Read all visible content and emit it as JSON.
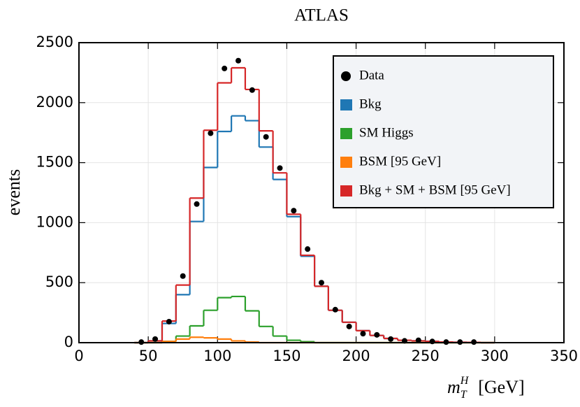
{
  "chart_data": {
    "type": "histogram",
    "title": "ATLAS",
    "y_label": "events",
    "x_label": {
      "symbol": "m",
      "sub": "T",
      "sup": "H",
      "unit": "[GeV]"
    },
    "bins": [
      40,
      50,
      60,
      70,
      80,
      90,
      100,
      110,
      120,
      130,
      140,
      150,
      160,
      170,
      180,
      190,
      200,
      210,
      220,
      230,
      240,
      250,
      260,
      270,
      280,
      290,
      300
    ],
    "points": {
      "name": "Data",
      "color": "#000000",
      "x": [
        45,
        55,
        65,
        75,
        85,
        95,
        105,
        115,
        125,
        135,
        145,
        155,
        165,
        175,
        185,
        195,
        205,
        215,
        225,
        235,
        245,
        255,
        265,
        275,
        285
      ],
      "values": [
        5,
        30,
        175,
        555,
        1155,
        1745,
        2285,
        2350,
        2105,
        1715,
        1455,
        1100,
        780,
        500,
        275,
        135,
        75,
        65,
        30,
        15,
        20,
        10,
        5,
        5,
        5
      ]
    },
    "series": [
      {
        "name": "Bkg",
        "color": "#1f77b4",
        "values": [
          0,
          15,
          160,
          400,
          1010,
          1460,
          1760,
          1890,
          1850,
          1630,
          1360,
          1050,
          720,
          470,
          270,
          170,
          100,
          60,
          35,
          20,
          15,
          10,
          5,
          3,
          2,
          0
        ]
      },
      {
        "name": "SM Higgs",
        "color": "#2ca02c",
        "values": [
          0,
          0,
          10,
          55,
          140,
          270,
          375,
          385,
          265,
          135,
          55,
          20,
          8,
          0,
          0,
          0,
          0,
          0,
          0,
          0,
          0,
          0,
          0,
          0,
          0,
          0
        ]
      },
      {
        "name": "BSM [95 GeV]",
        "color": "#ff7f0e",
        "values": [
          0,
          0,
          10,
          30,
          45,
          40,
          30,
          15,
          5,
          0,
          0,
          0,
          0,
          0,
          0,
          0,
          0,
          0,
          0,
          0,
          0,
          0,
          0,
          0,
          0,
          0
        ]
      },
      {
        "name": "Bkg + SM + BSM [95 GeV]",
        "color": "#d62728",
        "values": [
          0,
          15,
          180,
          480,
          1205,
          1770,
          2165,
          2290,
          2110,
          1765,
          1415,
          1070,
          728,
          470,
          270,
          170,
          100,
          60,
          35,
          20,
          15,
          10,
          5,
          3,
          2,
          0
        ]
      }
    ],
    "xlim": [
      0,
      350
    ],
    "ylim": [
      0,
      2500
    ],
    "xticks": [
      0,
      50,
      100,
      150,
      200,
      250,
      300,
      350
    ],
    "yticks": [
      0,
      500,
      1000,
      1500,
      2000,
      2500
    ],
    "grid": true,
    "legend": "upper right"
  }
}
